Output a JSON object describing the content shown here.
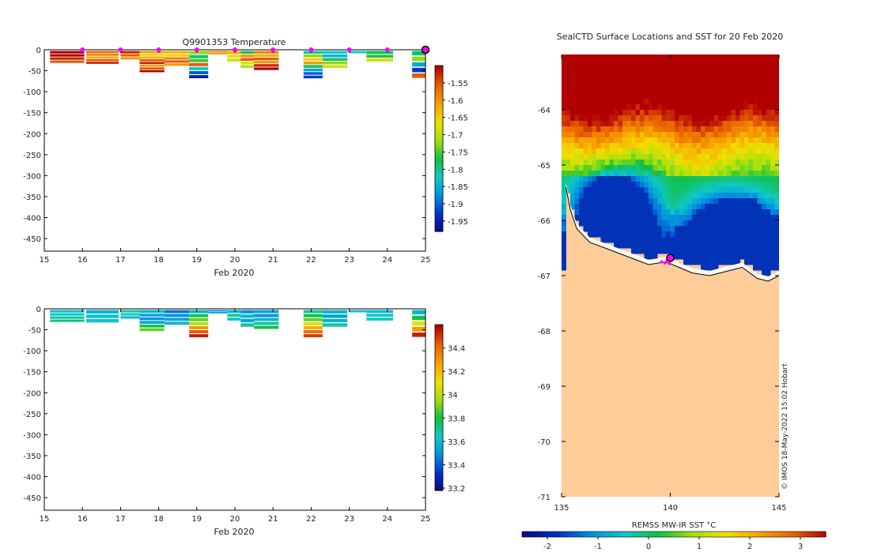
{
  "chart_data": [
    {
      "type": "heatmap",
      "name": "temperature-section",
      "title": "Q9901353  Temperature",
      "xlabel": "Feb 2020",
      "xlim": [
        15,
        25
      ],
      "ylim": [
        -480,
        0
      ],
      "xticks": [
        15,
        16,
        17,
        18,
        19,
        20,
        21,
        22,
        23,
        24,
        25
      ],
      "yticks": [
        0,
        -50,
        -100,
        -150,
        -200,
        -250,
        -300,
        -350,
        -400,
        -450
      ],
      "colorbar": {
        "min": -1.98,
        "max": -1.5,
        "ticks": [
          -1.55,
          -1.6,
          -1.65,
          -1.7,
          -1.75,
          -1.8,
          -1.85,
          -1.9,
          -1.95
        ],
        "colors": [
          "#0a0a80",
          "#0030c8",
          "#0090e0",
          "#10c8c8",
          "#10c040",
          "#a0e010",
          "#f0e000",
          "#f8a000",
          "#e86000",
          "#b00000"
        ]
      },
      "surface_markers_day": [
        16,
        17,
        18,
        19,
        20,
        21,
        22,
        23,
        24
      ],
      "last_location_day": 25,
      "profiles": [
        {
          "x0": 15.15,
          "x1": 16.05,
          "bottom": -33,
          "values": [
            -1.5,
            -1.5,
            -1.52,
            -1.55
          ]
        },
        {
          "x0": 16.1,
          "x1": 16.95,
          "bottom": -35,
          "values": [
            -1.56,
            -1.58,
            -1.62,
            -1.55,
            -1.52
          ]
        },
        {
          "x0": 17.0,
          "x1": 17.5,
          "bottom": -25,
          "values": [
            -1.52,
            -1.55,
            -1.6
          ]
        },
        {
          "x0": 17.5,
          "x1": 18.15,
          "bottom": -55,
          "values": [
            -1.6,
            -1.65,
            -1.62,
            -1.55,
            -1.52,
            -1.6,
            -1.55,
            -1.5
          ]
        },
        {
          "x0": 18.15,
          "x1": 18.8,
          "bottom": -40,
          "values": [
            -1.62,
            -1.65,
            -1.58,
            -1.55,
            -1.6
          ]
        },
        {
          "x0": 18.8,
          "x1": 19.3,
          "bottom": -70,
          "values": [
            -1.72,
            -1.78,
            -1.75,
            -1.55,
            -1.82,
            -1.9,
            -1.95
          ]
        },
        {
          "x0": 19.3,
          "x1": 19.8,
          "bottom": -12,
          "values": [
            -1.58,
            -1.6
          ]
        },
        {
          "x0": 19.8,
          "x1": 20.15,
          "bottom": -30,
          "values": [
            -1.62,
            -1.65,
            -1.68
          ]
        },
        {
          "x0": 20.15,
          "x1": 20.5,
          "bottom": -45,
          "values": [
            -1.78,
            -1.6,
            -1.55,
            -1.67,
            -1.7
          ]
        },
        {
          "x0": 20.5,
          "x1": 21.15,
          "bottom": -50,
          "values": [
            -1.58,
            -1.62,
            -1.55,
            -1.6,
            -1.52,
            -1.5
          ]
        },
        {
          "x0": 21.8,
          "x1": 22.3,
          "bottom": -70,
          "values": [
            -1.8,
            -1.72,
            -1.65,
            -1.6,
            -1.78,
            -1.85,
            -1.9,
            -1.92
          ]
        },
        {
          "x0": 22.3,
          "x1": 22.95,
          "bottom": -45,
          "values": [
            -1.82,
            -1.84,
            -1.78,
            -1.72,
            -1.68
          ]
        },
        {
          "x0": 23.0,
          "x1": 23.45,
          "bottom": -10,
          "values": [
            -1.82
          ]
        },
        {
          "x0": 23.45,
          "x1": 24.15,
          "bottom": -30,
          "values": [
            -1.78,
            -1.76,
            -1.68
          ]
        },
        {
          "x0": 24.65,
          "x1": 25.1,
          "bottom": -70,
          "values": [
            -1.78,
            -1.72,
            -1.85,
            -1.92,
            -1.55
          ]
        }
      ]
    },
    {
      "type": "heatmap",
      "name": "salinity-section",
      "title": "",
      "xlabel": "Feb 2020",
      "xlim": [
        15,
        25
      ],
      "ylim": [
        -480,
        0
      ],
      "xticks": [
        15,
        16,
        17,
        18,
        19,
        20,
        21,
        22,
        23,
        24,
        25
      ],
      "yticks": [
        0,
        -50,
        -100,
        -150,
        -200,
        -250,
        -300,
        -350,
        -400,
        -450
      ],
      "colorbar": {
        "min": 33.18,
        "max": 34.6,
        "ticks": [
          34.4,
          34.2,
          34,
          33.8,
          33.6,
          33.4,
          33.2
        ],
        "colors": [
          "#0a0a80",
          "#0030c8",
          "#0090e0",
          "#10c8c8",
          "#10c040",
          "#a0e010",
          "#f0e000",
          "#f8a000",
          "#e86000",
          "#b00000"
        ]
      },
      "profiles": [
        {
          "x0": 15.15,
          "x1": 16.05,
          "bottom": -33,
          "values": [
            33.62,
            33.66,
            33.7,
            33.74
          ]
        },
        {
          "x0": 16.1,
          "x1": 16.95,
          "bottom": -35,
          "values": [
            33.6,
            33.62,
            33.64
          ]
        },
        {
          "x0": 17.0,
          "x1": 17.5,
          "bottom": -25,
          "values": [
            33.7,
            33.65,
            33.6
          ]
        },
        {
          "x0": 17.5,
          "x1": 18.15,
          "bottom": -55,
          "values": [
            33.6,
            33.55,
            33.5,
            33.55,
            33.8,
            33.9
          ]
        },
        {
          "x0": 18.15,
          "x1": 18.8,
          "bottom": -40,
          "values": [
            33.45,
            33.5,
            33.55,
            33.6
          ]
        },
        {
          "x0": 18.8,
          "x1": 19.3,
          "bottom": -70,
          "values": [
            33.6,
            33.8,
            33.9,
            34.0,
            34.3,
            34.45,
            34.55
          ]
        },
        {
          "x0": 19.3,
          "x1": 19.8,
          "bottom": -12,
          "values": [
            33.5,
            33.55
          ]
        },
        {
          "x0": 19.8,
          "x1": 20.15,
          "bottom": -30,
          "values": [
            33.6,
            33.7,
            33.65
          ]
        },
        {
          "x0": 20.15,
          "x1": 20.5,
          "bottom": -45,
          "values": [
            33.5,
            33.6,
            33.55,
            33.7
          ]
        },
        {
          "x0": 20.5,
          "x1": 21.15,
          "bottom": -50,
          "values": [
            33.55,
            33.5,
            33.6,
            33.7,
            33.8
          ]
        },
        {
          "x0": 21.8,
          "x1": 22.3,
          "bottom": -70,
          "values": [
            33.7,
            33.8,
            33.9,
            34.1,
            34.25,
            34.4,
            34.5
          ]
        },
        {
          "x0": 22.3,
          "x1": 22.95,
          "bottom": -45,
          "values": [
            33.6,
            33.55,
            33.6,
            33.7
          ]
        },
        {
          "x0": 23.0,
          "x1": 23.45,
          "bottom": -10,
          "values": [
            33.62
          ]
        },
        {
          "x0": 23.45,
          "x1": 24.15,
          "bottom": -30,
          "values": [
            33.62,
            33.64,
            33.66
          ]
        },
        {
          "x0": 24.65,
          "x1": 25.1,
          "bottom": -70,
          "values": [
            33.6,
            33.8,
            34.1,
            34.3,
            34.55
          ]
        }
      ]
    },
    {
      "type": "heatmap",
      "name": "sst-map",
      "title": "SealCTD Surface Locations and SST for 20 Feb 2020",
      "xlabel": "",
      "colorbar_label": "REMSS MW-IR SST °C",
      "xlim": [
        135,
        145
      ],
      "ylim": [
        -71,
        -63
      ],
      "xticks": [
        135,
        140,
        145
      ],
      "yticks": [
        -64,
        -65,
        -66,
        -67,
        -68,
        -69,
        -70,
        -71
      ],
      "colorbar": {
        "min": -2.5,
        "max": 3.5,
        "ticks": [
          -2,
          -1,
          0,
          1,
          2,
          3
        ],
        "colors": [
          "#0a0a80",
          "#0030c8",
          "#0090e0",
          "#10c8c8",
          "#10c040",
          "#a0e010",
          "#f0e000",
          "#f8a000",
          "#e86000",
          "#b00000"
        ]
      },
      "land_color": "#fdcc99",
      "cold_sst_color": "#0033b8",
      "coastline": [
        [
          135.2,
          -65.4
        ],
        [
          135.4,
          -65.8
        ],
        [
          135.7,
          -66.15
        ],
        [
          136.3,
          -66.4
        ],
        [
          137.0,
          -66.5
        ],
        [
          138.0,
          -66.65
        ],
        [
          139.0,
          -66.8
        ],
        [
          139.8,
          -66.75
        ],
        [
          140.4,
          -66.85
        ],
        [
          141.0,
          -66.95
        ],
        [
          141.8,
          -67.0
        ],
        [
          142.3,
          -66.95
        ],
        [
          142.8,
          -66.9
        ],
        [
          143.3,
          -66.85
        ],
        [
          144.0,
          -67.05
        ],
        [
          144.5,
          -67.1
        ],
        [
          145.0,
          -67.0
        ]
      ],
      "seal_locations": [
        [
          139.6,
          -66.75
        ],
        [
          139.75,
          -66.77
        ],
        [
          139.85,
          -66.72
        ],
        [
          139.95,
          -66.78
        ],
        [
          140.0,
          -66.68
        ]
      ],
      "current_location": [
        140.0,
        -66.68
      ],
      "credit": "© IMOS 18-May-2022 15:02 Hobart"
    }
  ]
}
